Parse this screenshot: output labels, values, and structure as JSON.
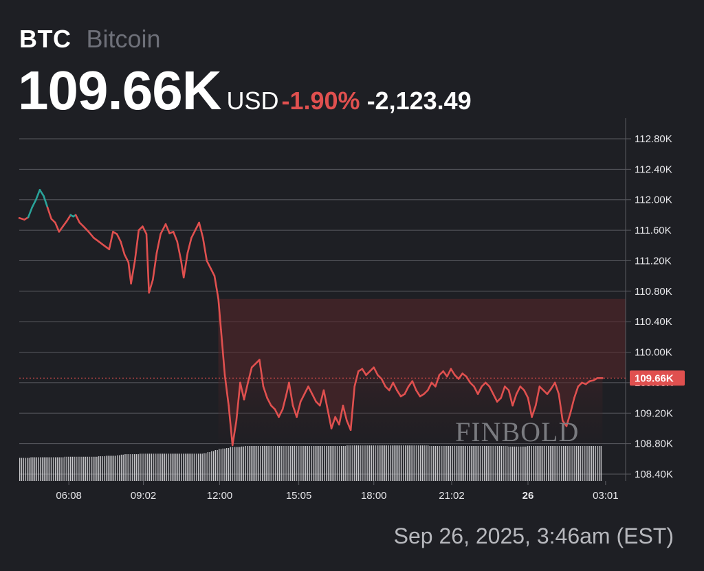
{
  "header": {
    "ticker": "BTC",
    "name": "Bitcoin",
    "price": "109.66K",
    "currency": "USD",
    "change_pct": "-1.90%",
    "change_abs": "-2,123.49"
  },
  "timestamp": "Sep 26, 2025, 3:46am (EST)",
  "watermark": "FINBOLD",
  "colors": {
    "background": "#1e1f24",
    "up": "#2aa39a",
    "down": "#e0504f",
    "grid": "#5a5b61",
    "volume": "#d8d8dc"
  },
  "chart_data": {
    "type": "line",
    "title": "",
    "xlabel": "",
    "ylabel": "",
    "ylim": [
      108400,
      112900
    ],
    "y_ticks": [
      112800,
      112400,
      112000,
      111600,
      111200,
      110800,
      110400,
      110000,
      109600,
      109200,
      108800,
      108400
    ],
    "y_tick_labels": [
      "112.80K",
      "112.40K",
      "112.00K",
      "111.60K",
      "111.20K",
      "110.80K",
      "110.40K",
      "110.00K",
      "109.60K",
      "109.20K",
      "108.80K",
      "108.40K"
    ],
    "x_range": [
      4.2,
      3.8
    ],
    "x_ticks": [
      {
        "label": "06:08",
        "x": 6.13,
        "bold": false
      },
      {
        "label": "09:02",
        "x": 9.03,
        "bold": false
      },
      {
        "label": "12:00",
        "x": 12.0,
        "bold": false
      },
      {
        "label": "15:05",
        "x": 15.08,
        "bold": false
      },
      {
        "label": "18:00",
        "x": 18.0,
        "bold": false
      },
      {
        "label": "21:02",
        "x": 21.03,
        "bold": false
      },
      {
        "label": "26",
        "x": 24.0,
        "bold": true
      },
      {
        "label": "03:01",
        "x": 27.02,
        "bold": false
      }
    ],
    "current_value": 109660,
    "current_label": "109.66K",
    "series": [
      {
        "values": [
          [
            4.2,
            111760
          ],
          [
            4.4,
            111740
          ],
          [
            4.55,
            111770
          ],
          [
            4.7,
            111900
          ],
          [
            4.85,
            112000
          ],
          [
            5.0,
            112130
          ],
          [
            5.15,
            112050
          ],
          [
            5.3,
            111900
          ],
          [
            5.45,
            111750
          ],
          [
            5.6,
            111700
          ],
          [
            5.75,
            111580
          ],
          [
            5.9,
            111650
          ],
          [
            6.05,
            111720
          ],
          [
            6.2,
            111800
          ],
          [
            6.3,
            111780
          ],
          [
            6.4,
            111800
          ],
          [
            6.55,
            111700
          ],
          [
            6.7,
            111650
          ],
          [
            6.9,
            111580
          ],
          [
            7.1,
            111500
          ],
          [
            7.3,
            111450
          ],
          [
            7.5,
            111400
          ],
          [
            7.7,
            111350
          ],
          [
            7.85,
            111580
          ],
          [
            8.0,
            111550
          ],
          [
            8.15,
            111450
          ],
          [
            8.3,
            111280
          ],
          [
            8.45,
            111180
          ],
          [
            8.55,
            110900
          ],
          [
            8.7,
            111200
          ],
          [
            8.85,
            111600
          ],
          [
            9.0,
            111650
          ],
          [
            9.15,
            111550
          ],
          [
            9.25,
            110780
          ],
          [
            9.4,
            110950
          ],
          [
            9.55,
            111300
          ],
          [
            9.7,
            111550
          ],
          [
            9.9,
            111680
          ],
          [
            10.05,
            111560
          ],
          [
            10.2,
            111580
          ],
          [
            10.35,
            111450
          ],
          [
            10.5,
            111200
          ],
          [
            10.6,
            110980
          ],
          [
            10.75,
            111300
          ],
          [
            10.9,
            111500
          ],
          [
            11.05,
            111600
          ],
          [
            11.2,
            111700
          ],
          [
            11.35,
            111500
          ],
          [
            11.5,
            111200
          ],
          [
            11.65,
            111100
          ],
          [
            11.8,
            111000
          ],
          [
            11.95,
            110700
          ],
          [
            12.05,
            110300
          ],
          [
            12.2,
            109700
          ],
          [
            12.35,
            109300
          ],
          [
            12.5,
            108780
          ],
          [
            12.65,
            109100
          ],
          [
            12.8,
            109600
          ],
          [
            12.95,
            109380
          ],
          [
            13.1,
            109600
          ],
          [
            13.25,
            109800
          ],
          [
            13.4,
            109850
          ],
          [
            13.55,
            109900
          ],
          [
            13.7,
            109550
          ],
          [
            13.85,
            109400
          ],
          [
            14.0,
            109300
          ],
          [
            14.15,
            109250
          ],
          [
            14.3,
            109150
          ],
          [
            14.45,
            109250
          ],
          [
            14.6,
            109450
          ],
          [
            14.7,
            109600
          ],
          [
            14.85,
            109300
          ],
          [
            15.0,
            109150
          ],
          [
            15.15,
            109350
          ],
          [
            15.3,
            109450
          ],
          [
            15.45,
            109550
          ],
          [
            15.6,
            109450
          ],
          [
            15.75,
            109350
          ],
          [
            15.9,
            109300
          ],
          [
            16.05,
            109500
          ],
          [
            16.2,
            109250
          ],
          [
            16.35,
            109000
          ],
          [
            16.5,
            109150
          ],
          [
            16.65,
            109050
          ],
          [
            16.8,
            109300
          ],
          [
            16.95,
            109100
          ],
          [
            17.1,
            108980
          ],
          [
            17.25,
            109550
          ],
          [
            17.4,
            109750
          ],
          [
            17.55,
            109780
          ],
          [
            17.7,
            109700
          ],
          [
            17.85,
            109750
          ],
          [
            18.0,
            109800
          ],
          [
            18.15,
            109700
          ],
          [
            18.3,
            109650
          ],
          [
            18.45,
            109550
          ],
          [
            18.6,
            109500
          ],
          [
            18.75,
            109600
          ],
          [
            18.9,
            109500
          ],
          [
            19.05,
            109420
          ],
          [
            19.2,
            109450
          ],
          [
            19.35,
            109550
          ],
          [
            19.5,
            109620
          ],
          [
            19.65,
            109500
          ],
          [
            19.8,
            109420
          ],
          [
            19.95,
            109450
          ],
          [
            20.1,
            109500
          ],
          [
            20.25,
            109600
          ],
          [
            20.4,
            109550
          ],
          [
            20.55,
            109700
          ],
          [
            20.7,
            109750
          ],
          [
            20.85,
            109680
          ],
          [
            21.0,
            109780
          ],
          [
            21.15,
            109700
          ],
          [
            21.3,
            109650
          ],
          [
            21.45,
            109720
          ],
          [
            21.6,
            109680
          ],
          [
            21.75,
            109600
          ],
          [
            21.9,
            109550
          ],
          [
            22.05,
            109450
          ],
          [
            22.2,
            109550
          ],
          [
            22.35,
            109600
          ],
          [
            22.5,
            109550
          ],
          [
            22.65,
            109450
          ],
          [
            22.8,
            109350
          ],
          [
            22.95,
            109400
          ],
          [
            23.1,
            109550
          ],
          [
            23.25,
            109500
          ],
          [
            23.4,
            109300
          ],
          [
            23.55,
            109450
          ],
          [
            23.7,
            109550
          ],
          [
            23.85,
            109500
          ],
          [
            24.0,
            109400
          ],
          [
            24.15,
            109150
          ],
          [
            24.3,
            109300
          ],
          [
            24.45,
            109550
          ],
          [
            24.6,
            109500
          ],
          [
            24.75,
            109450
          ],
          [
            24.9,
            109520
          ],
          [
            25.05,
            109600
          ],
          [
            25.2,
            109450
          ],
          [
            25.35,
            109100
          ],
          [
            25.5,
            109030
          ],
          [
            25.65,
            109200
          ],
          [
            25.8,
            109400
          ],
          [
            25.95,
            109550
          ],
          [
            26.1,
            109600
          ],
          [
            26.25,
            109580
          ],
          [
            26.4,
            109620
          ],
          [
            26.55,
            109630
          ],
          [
            26.7,
            109660
          ],
          [
            26.9,
            109660
          ]
        ]
      }
    ],
    "up_segments": [
      [
        4.55,
        5.35
      ],
      [
        6.1,
        6.45
      ]
    ],
    "volume": {
      "x_range": [
        4.2,
        26.9
      ],
      "relative": [
        0.45,
        0.45,
        0.45,
        0.46,
        0.46,
        0.46,
        0.46,
        0.46,
        0.46,
        0.46,
        0.46,
        0.46,
        0.47,
        0.47,
        0.47,
        0.47,
        0.47,
        0.47,
        0.47,
        0.47,
        0.47,
        0.48,
        0.48,
        0.49,
        0.49,
        0.49,
        0.5,
        0.51,
        0.52,
        0.52,
        0.52,
        0.52,
        0.53,
        0.53,
        0.53,
        0.53,
        0.53,
        0.53,
        0.53,
        0.53,
        0.53,
        0.53,
        0.53,
        0.53,
        0.53,
        0.53,
        0.53,
        0.53,
        0.53,
        0.54,
        0.56,
        0.58,
        0.6,
        0.62,
        0.63,
        0.64,
        0.66,
        0.66,
        0.66,
        0.67,
        0.68,
        0.68,
        0.68,
        0.68,
        0.68,
        0.68,
        0.68,
        0.68,
        0.68,
        0.68,
        0.68,
        0.68,
        0.68,
        0.68,
        0.68,
        0.68,
        0.68,
        0.68,
        0.68,
        0.68,
        0.68,
        0.68,
        0.68,
        0.68,
        0.68,
        0.68,
        0.68,
        0.69,
        0.69,
        0.69,
        0.69,
        0.69,
        0.69,
        0.69,
        0.69,
        0.69,
        0.69,
        0.69,
        0.69,
        0.69,
        0.69,
        0.69,
        0.69,
        0.69,
        0.69,
        0.69,
        0.69,
        0.69,
        0.69,
        0.68,
        0.68,
        0.68,
        0.68,
        0.68,
        0.68,
        0.68,
        0.68,
        0.68,
        0.68,
        0.68,
        0.68,
        0.68,
        0.68,
        0.68,
        0.68,
        0.68,
        0.68,
        0.68,
        0.68,
        0.68,
        0.67,
        0.67,
        0.67,
        0.67,
        0.67,
        0.68,
        0.68,
        0.68,
        0.68,
        0.68,
        0.68,
        0.68,
        0.68,
        0.68,
        0.68,
        0.68,
        0.68,
        0.68,
        0.68,
        0.68,
        0.68,
        0.68,
        0.68,
        0.68,
        0.68
      ]
    }
  }
}
